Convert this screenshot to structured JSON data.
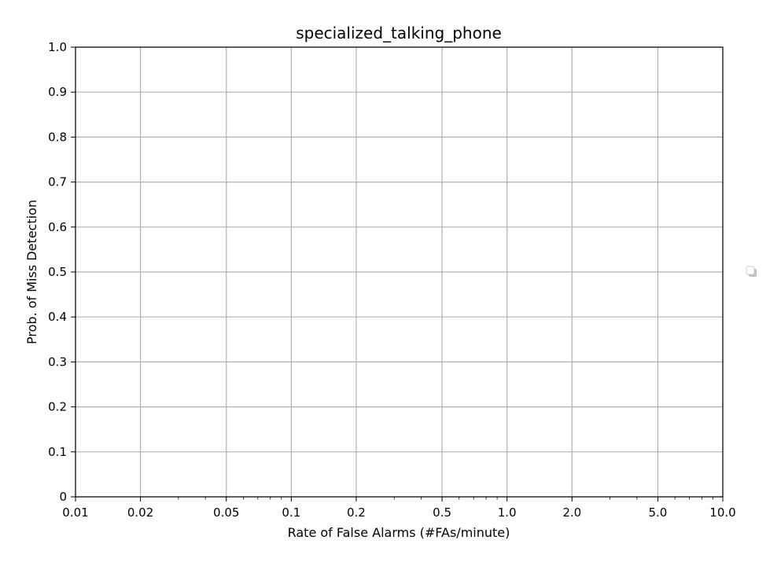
{
  "chart_data": {
    "type": "line",
    "title": "specialized_talking_phone",
    "xlabel": "Rate of False Alarms (#FAs/minute)",
    "ylabel": "Prob. of Miss Detection",
    "x_scale": "log",
    "y_scale": "linear",
    "xlim": [
      0.01,
      10.0
    ],
    "ylim": [
      0,
      1.0
    ],
    "x_ticks": [
      0.01,
      0.02,
      0.05,
      0.1,
      0.2,
      0.5,
      1.0,
      2.0,
      5.0,
      10.0
    ],
    "x_tick_labels": [
      "0.01",
      "0.02",
      "0.05",
      "0.1",
      "0.2",
      "0.5",
      "1.0",
      "2.0",
      "5.0",
      "10.0"
    ],
    "y_ticks": [
      0,
      0.1,
      0.2,
      0.3,
      0.4,
      0.5,
      0.6,
      0.7,
      0.8,
      0.9,
      1.0
    ],
    "y_tick_labels": [
      "0",
      "0.1",
      "0.2",
      "0.3",
      "0.4",
      "0.5",
      "0.6",
      "0.7",
      "0.8",
      "0.9",
      "1.0"
    ],
    "grid": true,
    "legend": {
      "placement": "outside-right",
      "entries": []
    },
    "series": [],
    "colors": {
      "grid": "#b0b0b0",
      "axis": "#000000",
      "background": "#ffffff",
      "legend_border": "#cccccc"
    }
  }
}
